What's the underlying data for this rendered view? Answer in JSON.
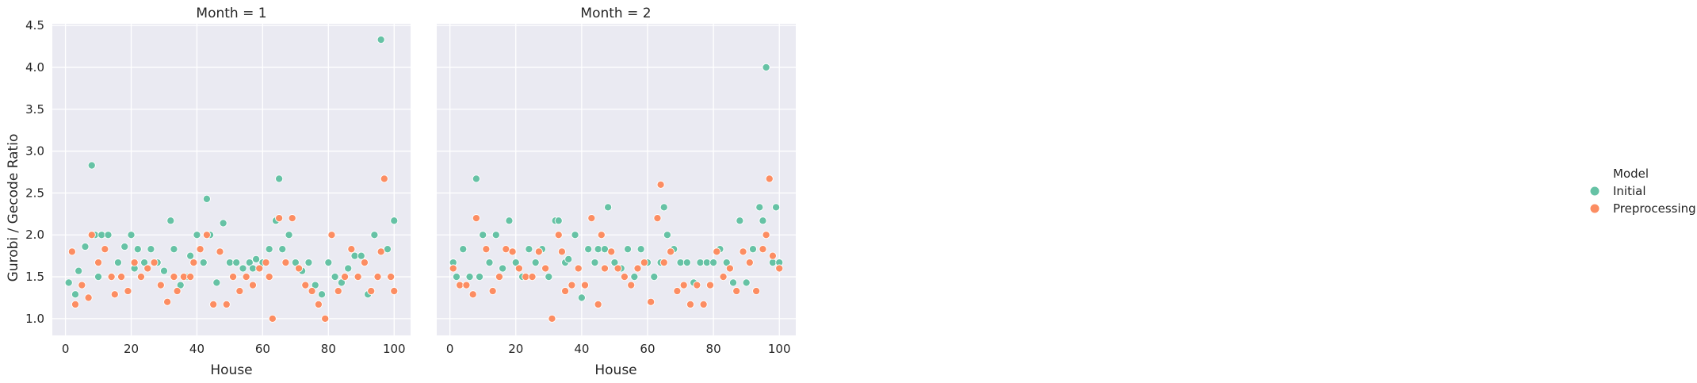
{
  "colors": {
    "panel_bg": "#EAEAF2",
    "grid": "#FFFFFF",
    "initial": "#66C2A5",
    "preprocessing": "#FC8D62",
    "marker_edge": "#FFFFFF",
    "text": "#262626"
  },
  "ylabel": "Gurobi / Gecode Ratio",
  "legend": {
    "title": "Model",
    "entries": [
      {
        "name": "Initial",
        "color_key": "initial"
      },
      {
        "name": "Preprocessing",
        "color_key": "preprocessing"
      }
    ]
  },
  "chart_data": [
    {
      "type": "scatter",
      "title": "Month = 1",
      "xlabel": "House",
      "ylabel": "Gurobi / Gecode Ratio",
      "xlim": [
        -4,
        105
      ],
      "ylim": [
        0.8,
        4.52
      ],
      "xticks": [
        0,
        20,
        40,
        60,
        80,
        100
      ],
      "yticks": [
        1.0,
        1.5,
        2.0,
        2.5,
        3.0,
        3.5,
        4.0,
        4.5
      ],
      "ytick_labels": [
        "1.0",
        "1.5",
        "2.0",
        "2.5",
        "3.0",
        "3.5",
        "4.0",
        "4.5"
      ],
      "xtick_labels": [
        "0",
        "20",
        "40",
        "60",
        "80",
        "100"
      ],
      "grid": true,
      "series": [
        {
          "name": "Initial",
          "x": [
            1,
            3,
            4,
            6,
            8,
            9,
            10,
            11,
            13,
            14,
            16,
            18,
            20,
            21,
            22,
            24,
            26,
            28,
            30,
            32,
            33,
            35,
            37,
            38,
            40,
            42,
            43,
            44,
            46,
            48,
            50,
            52,
            54,
            56,
            57,
            58,
            60,
            62,
            64,
            65,
            66,
            68,
            70,
            72,
            74,
            76,
            78,
            80,
            82,
            84,
            86,
            88,
            90,
            92,
            94,
            96,
            98,
            100
          ],
          "y": [
            1.43,
            1.29,
            1.57,
            1.86,
            2.83,
            2.0,
            1.5,
            2.0,
            2.0,
            1.5,
            1.67,
            1.86,
            2.0,
            1.6,
            1.83,
            1.67,
            1.83,
            1.67,
            1.57,
            2.17,
            1.83,
            1.4,
            1.5,
            1.75,
            2.0,
            1.67,
            2.43,
            2.0,
            1.43,
            2.14,
            1.67,
            1.67,
            1.6,
            1.67,
            1.6,
            1.71,
            1.67,
            1.83,
            2.17,
            2.67,
            1.83,
            2.0,
            1.67,
            1.57,
            1.67,
            1.4,
            1.29,
            1.67,
            1.5,
            1.43,
            1.6,
            1.75,
            1.75,
            1.29,
            2.0,
            4.33,
            1.83,
            2.17
          ]
        },
        {
          "name": "Preprocessing",
          "x": [
            2,
            3,
            5,
            7,
            8,
            10,
            12,
            14,
            15,
            17,
            19,
            21,
            23,
            25,
            27,
            29,
            31,
            33,
            34,
            36,
            38,
            39,
            41,
            43,
            45,
            47,
            49,
            51,
            53,
            55,
            57,
            59,
            61,
            62,
            63,
            65,
            67,
            69,
            71,
            73,
            75,
            77,
            79,
            81,
            83,
            85,
            87,
            89,
            91,
            93,
            95,
            96,
            97,
            99,
            100
          ],
          "y": [
            1.8,
            1.17,
            1.4,
            1.25,
            2.0,
            1.67,
            1.83,
            1.5,
            1.29,
            1.5,
            1.33,
            1.67,
            1.5,
            1.6,
            1.67,
            1.4,
            1.2,
            1.5,
            1.33,
            1.5,
            1.5,
            1.67,
            1.83,
            2.0,
            1.17,
            1.8,
            1.17,
            1.5,
            1.33,
            1.5,
            1.4,
            1.6,
            1.67,
            1.5,
            1.0,
            2.2,
            1.67,
            2.2,
            1.6,
            1.4,
            1.33,
            1.17,
            1.0,
            2.0,
            1.33,
            1.5,
            1.83,
            1.5,
            1.67,
            1.33,
            1.5,
            1.8,
            2.67,
            1.5,
            1.33
          ]
        }
      ]
    },
    {
      "type": "scatter",
      "title": "Month = 2",
      "xlabel": "House",
      "ylabel": "Gurobi / Gecode Ratio",
      "xlim": [
        -4,
        105
      ],
      "ylim": [
        0.8,
        4.52
      ],
      "xticks": [
        0,
        20,
        40,
        60,
        80,
        100
      ],
      "xtick_labels": [
        "0",
        "20",
        "40",
        "60",
        "80",
        "100"
      ],
      "grid": true,
      "series": [
        {
          "name": "Initial",
          "x": [
            1,
            2,
            4,
            6,
            8,
            9,
            10,
            12,
            14,
            16,
            18,
            20,
            22,
            24,
            26,
            28,
            30,
            32,
            33,
            35,
            36,
            38,
            40,
            42,
            44,
            45,
            47,
            48,
            50,
            52,
            54,
            56,
            58,
            60,
            62,
            64,
            65,
            66,
            68,
            70,
            72,
            74,
            76,
            78,
            80,
            82,
            84,
            86,
            88,
            90,
            92,
            94,
            95,
            96,
            98,
            99,
            100
          ],
          "y": [
            1.67,
            1.5,
            1.83,
            1.5,
            2.67,
            1.5,
            2.0,
            1.67,
            2.0,
            1.6,
            2.17,
            1.67,
            1.5,
            1.83,
            1.67,
            1.83,
            1.5,
            2.17,
            2.17,
            1.67,
            1.71,
            2.0,
            1.25,
            1.83,
            1.67,
            1.83,
            1.83,
            2.33,
            1.67,
            1.6,
            1.83,
            1.5,
            1.83,
            1.67,
            1.5,
            1.67,
            2.33,
            2.0,
            1.83,
            1.67,
            1.67,
            1.43,
            1.67,
            1.67,
            1.67,
            1.83,
            1.67,
            1.43,
            2.17,
            1.43,
            1.83,
            2.33,
            2.17,
            4.0,
            1.67,
            2.33,
            1.67
          ]
        },
        {
          "name": "Preprocessing",
          "x": [
            1,
            3,
            5,
            7,
            8,
            11,
            13,
            15,
            17,
            19,
            21,
            23,
            25,
            27,
            29,
            31,
            33,
            34,
            35,
            37,
            39,
            41,
            43,
            45,
            46,
            47,
            49,
            51,
            53,
            55,
            57,
            59,
            61,
            63,
            64,
            65,
            67,
            69,
            71,
            73,
            75,
            77,
            79,
            81,
            83,
            85,
            87,
            89,
            91,
            93,
            95,
            96,
            97,
            98,
            100
          ],
          "y": [
            1.6,
            1.4,
            1.4,
            1.29,
            2.2,
            1.83,
            1.33,
            1.5,
            1.83,
            1.8,
            1.6,
            1.5,
            1.5,
            1.8,
            1.6,
            1.0,
            2.0,
            1.8,
            1.33,
            1.4,
            1.6,
            1.4,
            2.2,
            1.17,
            2.0,
            1.6,
            1.8,
            1.6,
            1.5,
            1.4,
            1.6,
            1.67,
            1.2,
            2.2,
            2.6,
            1.67,
            1.8,
            1.33,
            1.4,
            1.17,
            1.4,
            1.17,
            1.4,
            1.8,
            1.5,
            1.6,
            1.33,
            1.8,
            1.67,
            1.33,
            1.83,
            2.0,
            2.67,
            1.75,
            1.6
          ]
        }
      ]
    }
  ]
}
